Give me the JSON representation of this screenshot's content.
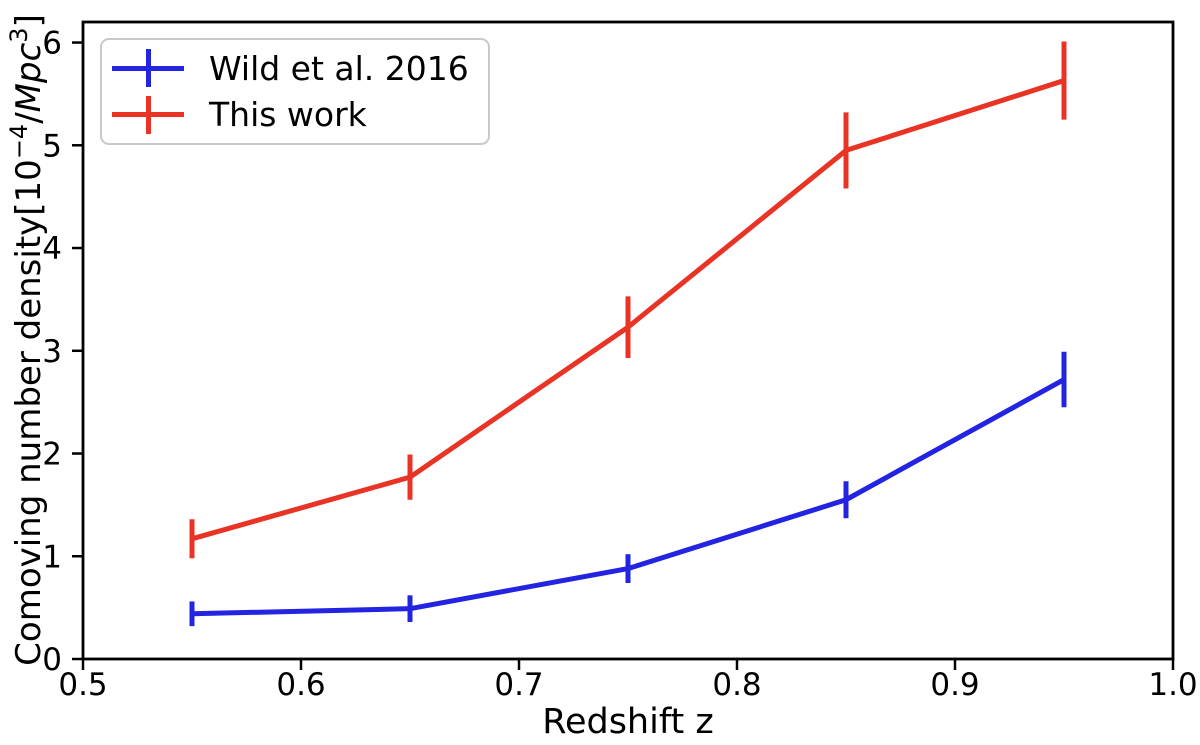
{
  "chart_data": {
    "type": "line",
    "title": "",
    "xlabel": "Redshift z",
    "ylabel": "Comoving number density[10−4/Mpc3]",
    "ylabel_rich": [
      {
        "t": "Comoving number density[10"
      },
      {
        "t": "−4",
        "sup": true
      },
      {
        "t": "/"
      },
      {
        "t": "Mpc",
        "italic": true
      },
      {
        "t": "3",
        "sup": true
      },
      {
        "t": "]"
      }
    ],
    "x": [
      0.55,
      0.65,
      0.75,
      0.85,
      0.95
    ],
    "series": [
      {
        "name": "Wild et al. 2016",
        "color": "#2323e2",
        "values": [
          0.44,
          0.49,
          0.88,
          1.55,
          2.72
        ],
        "yerr": [
          0.12,
          0.13,
          0.14,
          0.18,
          0.27
        ]
      },
      {
        "name": "This work",
        "color": "#e93425",
        "values": [
          1.17,
          1.77,
          3.23,
          4.95,
          5.63
        ],
        "yerr": [
          0.19,
          0.22,
          0.3,
          0.37,
          0.38
        ]
      }
    ],
    "xlim": [
      0.5,
      1.0
    ],
    "ylim": [
      0,
      6.2
    ],
    "xticks": [
      0.5,
      0.6,
      0.7,
      0.8,
      0.9,
      1.0
    ],
    "xtick_labels": [
      "0.5",
      "0.6",
      "0.7",
      "0.8",
      "0.9",
      "1.0"
    ],
    "yticks": [
      0,
      1,
      2,
      3,
      4,
      5,
      6
    ],
    "ytick_labels": [
      "0",
      "1",
      "2",
      "3",
      "4",
      "5",
      "6"
    ],
    "grid": false,
    "legend_position": "upper left",
    "axis_color": "#000000",
    "background_color": "#ffffff",
    "legend_border_color": "#c9c9c9"
  }
}
